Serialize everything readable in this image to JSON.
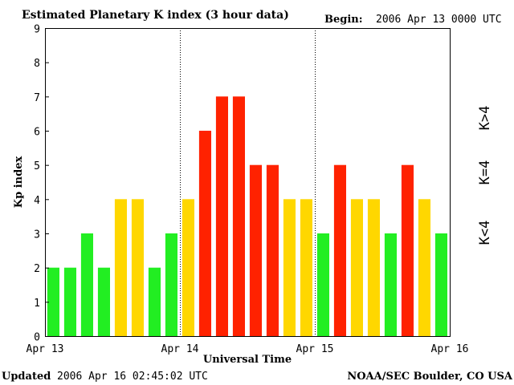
{
  "header": {
    "title": "Estimated Planetary K index (3 hour data)",
    "begin_label": "Begin:",
    "begin_value": "2006 Apr 13 0000 UTC"
  },
  "footer": {
    "updated_label": "Updated",
    "updated_value": "2006 Apr 16 02:45:02 UTC",
    "source": "NOAA/SEC Boulder, CO USA"
  },
  "legend": {
    "low": "K<4",
    "mid": "K=4",
    "high": "K>4"
  },
  "colors": {
    "low": "#22ee22",
    "mid": "#ffd700",
    "high": "#ff2200"
  },
  "chart_data": {
    "type": "bar",
    "title": "Estimated Planetary K index (3 hour data)",
    "xlabel": "Universal Time",
    "ylabel": "Kp index",
    "ylim": [
      0,
      9
    ],
    "yticks": [
      "0",
      "1",
      "2",
      "3",
      "4",
      "5",
      "6",
      "7",
      "8",
      "9"
    ],
    "xtick_labels": [
      "Apr 13",
      "Apr 14",
      "Apr 15",
      "Apr 16"
    ],
    "grid": false,
    "day_separators": true,
    "categories": [
      "Apr 13 00-03",
      "Apr 13 03-06",
      "Apr 13 06-09",
      "Apr 13 09-12",
      "Apr 13 12-15",
      "Apr 13 15-18",
      "Apr 13 18-21",
      "Apr 13 21-24",
      "Apr 14 00-03",
      "Apr 14 03-06",
      "Apr 14 06-09",
      "Apr 14 09-12",
      "Apr 14 12-15",
      "Apr 14 15-18",
      "Apr 14 18-21",
      "Apr 14 21-24",
      "Apr 15 00-03",
      "Apr 15 03-06",
      "Apr 15 06-09",
      "Apr 15 09-12",
      "Apr 15 12-15",
      "Apr 15 15-18",
      "Apr 15 18-21",
      "Apr 15 21-24"
    ],
    "values": [
      2,
      2,
      3,
      2,
      4,
      4,
      2,
      3,
      4,
      6,
      7,
      7,
      5,
      5,
      4,
      4,
      3,
      5,
      4,
      4,
      3,
      5,
      4,
      3
    ]
  }
}
